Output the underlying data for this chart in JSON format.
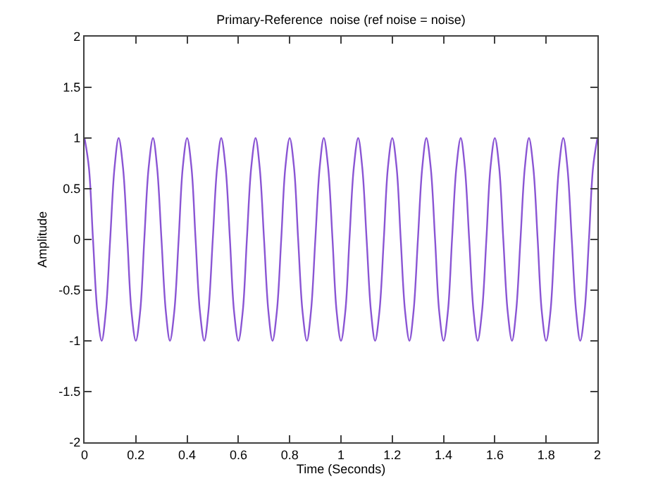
{
  "chart_data": {
    "type": "line",
    "title": "Primary-Reference  noise (ref noise = noise)",
    "xlabel": "Time (Seconds)",
    "ylabel": "Amplitude",
    "xlim": [
      0,
      2
    ],
    "xticks": [
      0,
      0.2,
      0.4,
      0.6,
      0.8,
      1,
      1.2,
      1.4,
      1.6,
      1.8,
      2
    ],
    "ylim": [
      -2,
      2
    ],
    "yticks": [
      -2,
      -1.5,
      -1,
      -0.5,
      0,
      0.5,
      1,
      1.5,
      2
    ],
    "marker": "none",
    "line_style": "solid",
    "series": [
      {
        "color": "#8a55d4",
        "x": [
          0,
          0.017,
          0.033,
          0.05,
          0.067,
          0.083,
          0.1,
          0.117,
          0.133,
          0.15,
          0.167,
          0.183,
          0.2,
          0.217,
          0.233,
          0.25,
          0.267,
          0.283,
          0.3,
          0.317,
          0.333,
          0.35,
          0.367,
          0.383,
          0.4,
          0.417,
          0.433,
          0.45,
          0.467,
          0.483,
          0.5,
          0.517,
          0.533,
          0.55,
          0.567,
          0.583,
          0.6,
          0.617,
          0.633,
          0.65,
          0.667,
          0.683,
          0.7,
          0.717,
          0.733,
          0.75,
          0.767,
          0.783,
          0.8,
          0.817,
          0.833,
          0.85,
          0.867,
          0.883,
          0.9,
          0.917,
          0.933,
          0.95,
          0.967,
          0.983,
          1,
          1.017,
          1.033,
          1.05,
          1.067,
          1.083,
          1.1,
          1.117,
          1.133,
          1.15,
          1.167,
          1.183,
          1.2,
          1.217,
          1.233,
          1.25,
          1.267,
          1.283,
          1.3,
          1.317,
          1.333,
          1.35,
          1.367,
          1.383,
          1.4,
          1.417,
          1.433,
          1.45,
          1.467,
          1.483,
          1.5,
          1.517,
          1.533,
          1.55,
          1.567,
          1.583,
          1.6,
          1.617,
          1.633,
          1.65,
          1.667,
          1.683,
          1.7,
          1.717,
          1.733,
          1.75,
          1.767,
          1.783,
          1.8,
          1.817,
          1.833,
          1.85,
          1.867,
          1.883,
          1.9,
          1.917,
          1.933,
          1.95,
          1.967,
          1.983,
          2
        ],
        "values": [
          1,
          0.71,
          0,
          -0.71,
          -1,
          -0.71,
          0,
          0.71,
          1,
          0.71,
          0,
          -0.71,
          -1,
          -0.71,
          0,
          0.71,
          1,
          0.71,
          0,
          -0.71,
          -1,
          -0.71,
          0,
          0.71,
          1,
          0.71,
          0,
          -0.71,
          -1,
          -0.71,
          0,
          0.71,
          1,
          0.71,
          0,
          -0.71,
          -1,
          -0.71,
          0,
          0.71,
          1,
          0.71,
          0,
          -0.71,
          -1,
          -0.71,
          0,
          0.71,
          1,
          0.71,
          0,
          -0.71,
          -1,
          -0.71,
          0,
          0.71,
          1,
          0.71,
          0,
          -0.71,
          -1,
          -0.71,
          0,
          0.71,
          1,
          0.71,
          0,
          -0.71,
          -1,
          -0.71,
          0,
          0.71,
          1,
          0.71,
          0,
          -0.71,
          -1,
          -0.71,
          0,
          0.71,
          1,
          0.71,
          0,
          -0.71,
          -1,
          -0.71,
          0,
          0.71,
          1,
          0.71,
          0,
          -0.71,
          -1,
          -0.71,
          0,
          0.71,
          1,
          0.71,
          0,
          -0.71,
          -1,
          -0.71,
          0,
          0.71,
          1,
          0.71,
          0,
          -0.71,
          -1,
          -0.71,
          0,
          0.71,
          1,
          0.71,
          0,
          -0.71,
          -1,
          -0.71,
          0,
          0.71,
          1
        ]
      }
    ]
  }
}
